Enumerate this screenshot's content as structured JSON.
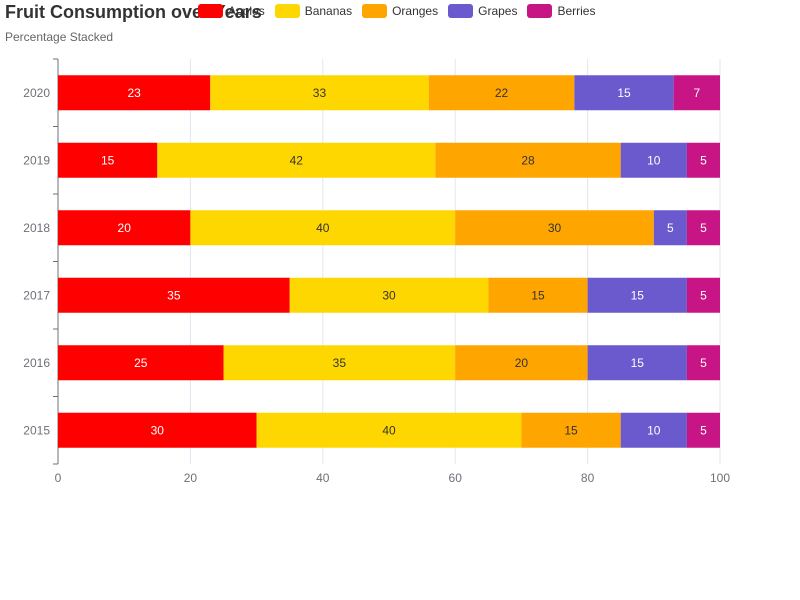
{
  "title": "Fruit Consumption over Years",
  "subtitle": "Percentage Stacked",
  "chart_data": {
    "type": "bar",
    "orientation": "horizontal",
    "stacked": true,
    "title": "Fruit Consumption over Years",
    "subtitle": "Percentage Stacked",
    "categories": [
      "2015",
      "2016",
      "2017",
      "2018",
      "2019",
      "2020"
    ],
    "xlim": [
      0,
      100
    ],
    "x_ticks": [
      0,
      20,
      40,
      60,
      80,
      100
    ],
    "grid": true,
    "legend_position": "top",
    "series": [
      {
        "name": "Apples",
        "color": "#ff0000",
        "label_color": "#ffffff",
        "values": [
          30,
          25,
          35,
          20,
          15,
          23
        ]
      },
      {
        "name": "Bananas",
        "color": "#ffd700",
        "label_color": "#333333",
        "values": [
          40,
          35,
          30,
          40,
          42,
          33
        ]
      },
      {
        "name": "Oranges",
        "color": "#ffa500",
        "label_color": "#333333",
        "values": [
          15,
          20,
          15,
          30,
          28,
          22
        ]
      },
      {
        "name": "Grapes",
        "color": "#6a5acd",
        "label_color": "#ffffff",
        "values": [
          10,
          15,
          15,
          5,
          10,
          15
        ]
      },
      {
        "name": "Berries",
        "color": "#c71585",
        "label_color": "#ffffff",
        "values": [
          5,
          5,
          5,
          5,
          5,
          7
        ]
      }
    ]
  }
}
